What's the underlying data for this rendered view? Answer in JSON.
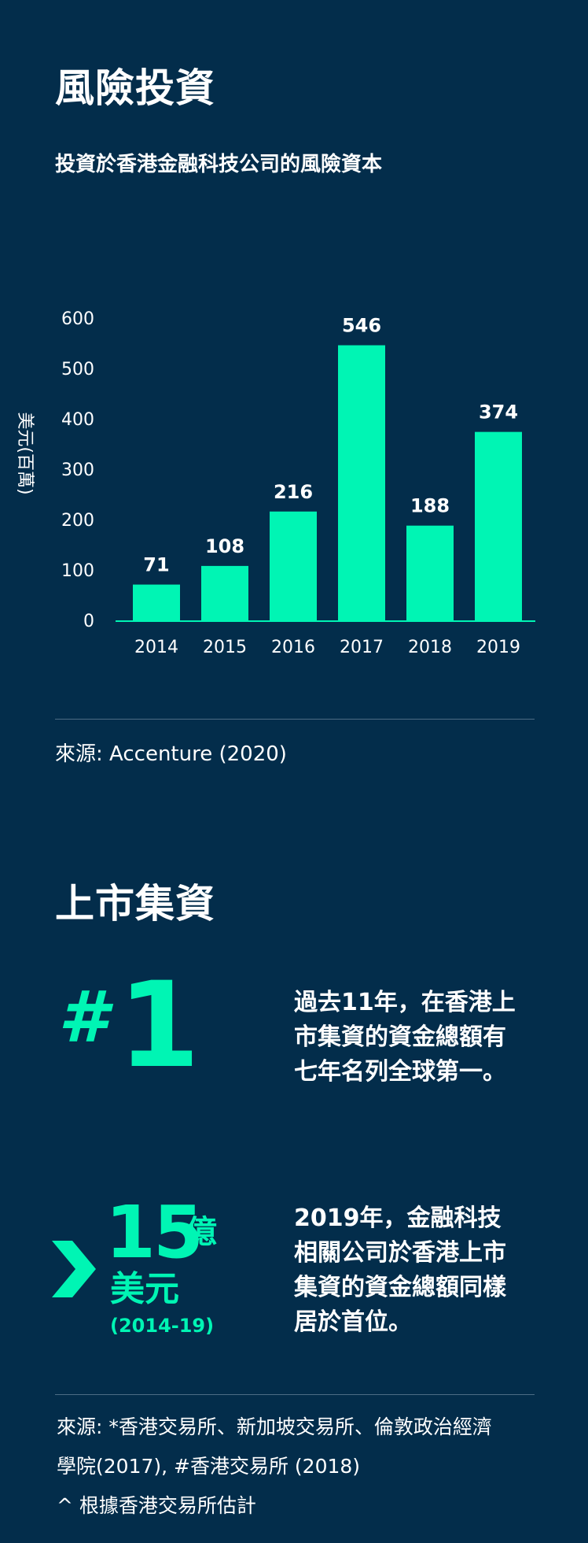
{
  "section1": {
    "title": "風險投資",
    "subtitle": "投資於香港金融科技公司的風險資本",
    "source": "來源: Accenture (2020)"
  },
  "chart_data": {
    "type": "bar",
    "categories": [
      "2014",
      "2015",
      "2016",
      "2017",
      "2018",
      "2019"
    ],
    "values": [
      71,
      108,
      216,
      546,
      188,
      374
    ],
    "ylabel": "美元(百萬)",
    "yticks": [
      "0",
      "100",
      "200",
      "300",
      "400",
      "500",
      "600"
    ],
    "ylim": [
      0,
      600
    ],
    "bar_color": "#00f5b4",
    "grid": false
  },
  "section2": {
    "title": "上市集資",
    "stat1": {
      "rank": "#1",
      "text_lines": [
        "過去11年，在香港上",
        "市集資的資金總額有",
        "七年名列全球第一。"
      ]
    },
    "stat2": {
      "number": "15",
      "unit": "億",
      "currency": "美元",
      "period": "(2014-19)",
      "text_lines": [
        "2019年，金融科技",
        "相關公司於香港上市",
        "集資的資金總額同樣",
        "居於首位。"
      ]
    },
    "footnotes": [
      "來源: *香港交易所、新加坡交易所、倫敦政治經濟",
      "學院(2017), #香港交易所 (2018)",
      "^ 根據香港交易所估計"
    ]
  },
  "colors": {
    "background": "#032d4b",
    "accent": "#00f5b4",
    "text": "#ffffff"
  }
}
